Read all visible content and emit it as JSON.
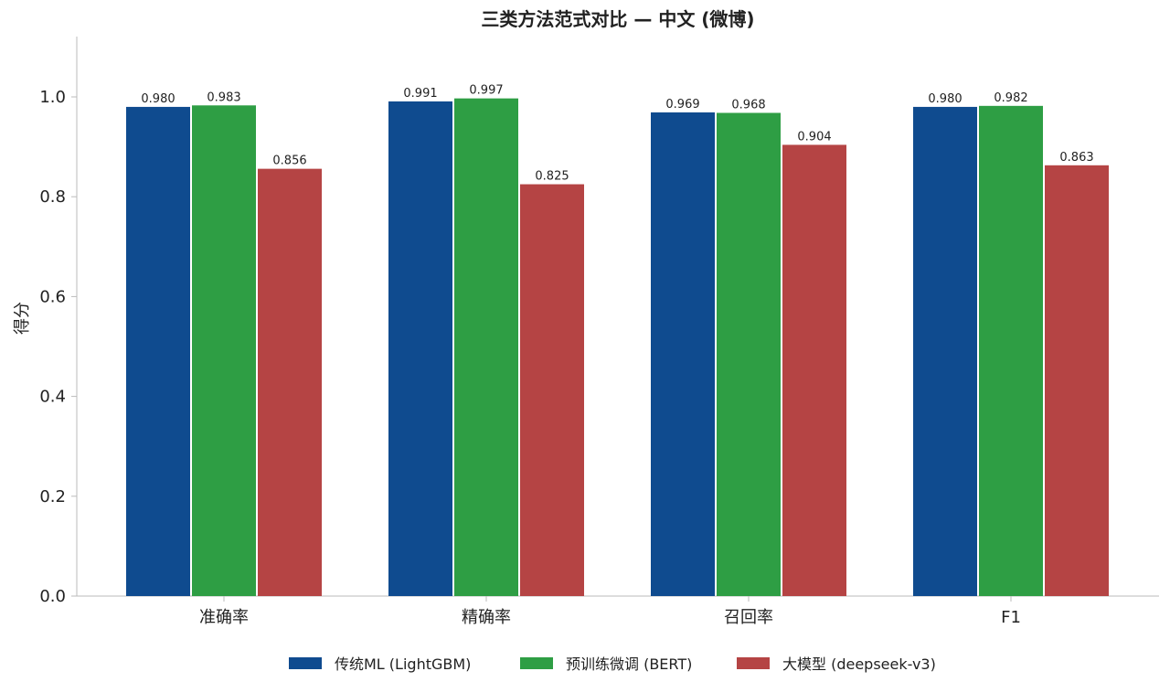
{
  "chart_data": {
    "type": "bar",
    "title": "三类方法范式对比 — 中文 (微博)",
    "xlabel": "",
    "ylabel": "得分",
    "categories": [
      "准确率",
      "精确率",
      "召回率",
      "F1"
    ],
    "series": [
      {
        "name": "传统ML (LightGBM)",
        "color": "#0f4b8f",
        "values": [
          0.98,
          0.991,
          0.969,
          0.98
        ]
      },
      {
        "name": "预训练微调 (BERT)",
        "color": "#2e9e44",
        "values": [
          0.983,
          0.997,
          0.968,
          0.982
        ]
      },
      {
        "name": "大模型 (deepseek-v3)",
        "color": "#b54444",
        "values": [
          0.856,
          0.825,
          0.904,
          0.863
        ]
      }
    ],
    "ylim": [
      0,
      1.12
    ],
    "yticks": [
      0.0,
      0.2,
      0.4,
      0.6,
      0.8,
      1.0
    ],
    "ytick_labels": [
      "0.0",
      "0.2",
      "0.4",
      "0.6",
      "0.8",
      "1.0"
    ],
    "value_labels": [
      [
        "0.980",
        "0.991",
        "0.969",
        "0.980"
      ],
      [
        "0.983",
        "0.997",
        "0.968",
        "0.982"
      ],
      [
        "0.856",
        "0.825",
        "0.904",
        "0.863"
      ]
    ],
    "grid": false,
    "legend_position": "bottom-center"
  }
}
